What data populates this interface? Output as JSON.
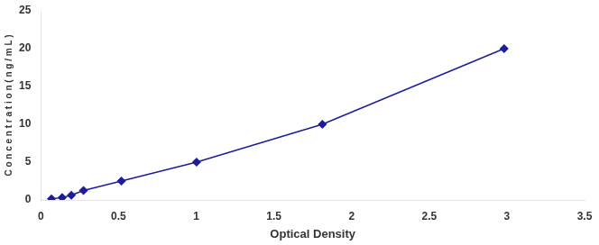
{
  "chart_data": {
    "type": "line",
    "x": [
      0.068,
      0.137,
      0.196,
      0.274,
      0.518,
      1.002,
      1.812,
      2.982
    ],
    "values": [
      0.156,
      0.312,
      0.625,
      1.25,
      2.5,
      5.0,
      10.0,
      20.0
    ],
    "color": "#1c1c9c",
    "marker": "diamond",
    "line_style": "solid",
    "xlabel": "Optical Density",
    "ylabel": "C o n c e n t r a t i o n ( n g / m L )",
    "xlim": [
      0,
      3.5
    ],
    "ylim": [
      0,
      25
    ],
    "xticks": [
      0,
      0.5,
      1,
      1.5,
      2,
      2.5,
      3,
      3.5
    ],
    "yticks": [
      0,
      5,
      10,
      15,
      20,
      25
    ],
    "grid": false
  }
}
